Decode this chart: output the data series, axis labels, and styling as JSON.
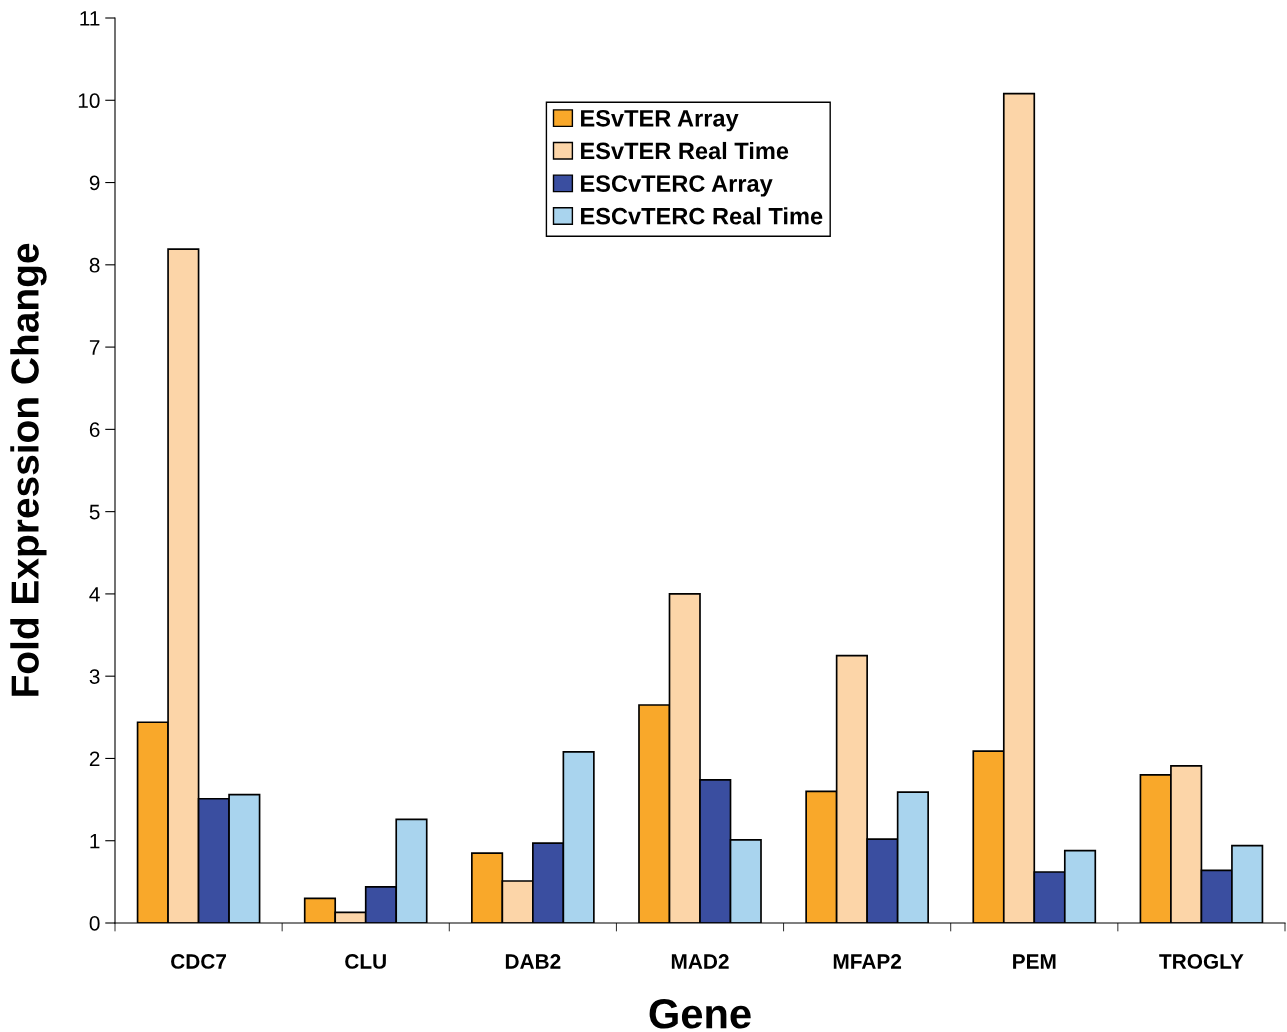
{
  "chart_data": {
    "type": "bar",
    "xlabel": "Gene",
    "ylabel": "Fold Expression Change",
    "categories": [
      "CDC7",
      "CLU",
      "DAB2",
      "MAD2",
      "MFAP2",
      "PEM",
      "TROGLY"
    ],
    "series": [
      {
        "name": "ESvTER Array",
        "color": "#f9a82a",
        "values": [
          2.44,
          0.3,
          0.85,
          2.65,
          1.6,
          2.09,
          1.8
        ]
      },
      {
        "name": "ESvTER Real Time",
        "color": "#fcd5a8",
        "values": [
          8.19,
          0.13,
          0.51,
          4.0,
          3.25,
          10.08,
          1.91
        ]
      },
      {
        "name": "ESCvTERC Array",
        "color": "#3a4ea0",
        "values": [
          1.51,
          0.44,
          0.97,
          1.74,
          1.02,
          0.62,
          0.64
        ]
      },
      {
        "name": "ESCvTERC Real Time",
        "color": "#a9d4ee",
        "values": [
          1.56,
          1.26,
          2.08,
          1.01,
          1.59,
          0.88,
          0.94
        ]
      }
    ],
    "ylim": [
      0,
      11
    ],
    "yticks": [
      0,
      1,
      2,
      3,
      4,
      5,
      6,
      7,
      8,
      9,
      10,
      11
    ],
    "grid": false,
    "legend": "top"
  }
}
